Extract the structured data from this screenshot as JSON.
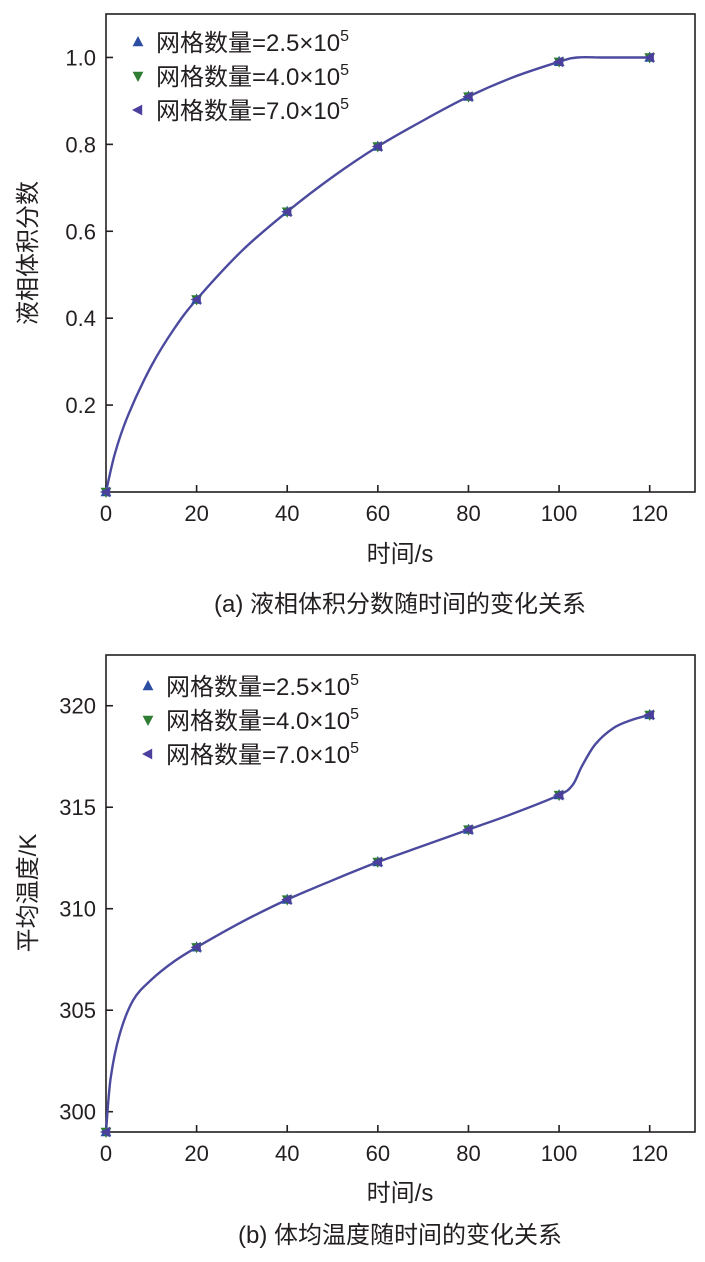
{
  "colors": {
    "series_2_5": "#2b4ea2",
    "series_4_0": "#2e7d32",
    "series_7_0": "#4b3f9e",
    "curve": "#4b4a9e",
    "axis": "#231f20"
  },
  "chart_data": [
    {
      "type": "line",
      "caption": "(a) 液相体积分数随时间的变化关系",
      "xlabel": "时间/s",
      "ylabel": "液相体积分数",
      "xlim": [
        0,
        130
      ],
      "ylim": [
        0,
        1.1
      ],
      "xticks": [
        "0",
        "20",
        "40",
        "60",
        "80",
        "100",
        "120"
      ],
      "yticks": [
        "0.2",
        "0.4",
        "0.6",
        "0.8",
        "1.0"
      ],
      "xtick_values": [
        0,
        20,
        40,
        60,
        80,
        100,
        120
      ],
      "ytick_values": [
        0.2,
        0.4,
        0.6,
        0.8,
        1.0
      ],
      "grid": false,
      "legend_position": "top-left",
      "legend": [
        {
          "base": "网格数量=2.5×10",
          "exp": "5",
          "marker": "triangle-up",
          "color": "#2b4ea2"
        },
        {
          "base": "网格数量=4.0×10",
          "exp": "5",
          "marker": "triangle-down",
          "color": "#2e7d32"
        },
        {
          "base": "网格数量=7.0×10",
          "exp": "5",
          "marker": "triangle-left",
          "color": "#4b3f9e"
        }
      ],
      "x": [
        0,
        20,
        40,
        60,
        80,
        100,
        120
      ],
      "series": [
        {
          "values": [
            0.0,
            0.443,
            0.645,
            0.795,
            0.91,
            0.99,
            1.0
          ]
        },
        {
          "values": [
            0.0,
            0.443,
            0.645,
            0.795,
            0.91,
            0.99,
            1.0
          ]
        },
        {
          "values": [
            0.0,
            0.443,
            0.645,
            0.795,
            0.91,
            0.99,
            1.0
          ]
        }
      ],
      "curve": {
        "x": [
          0,
          2,
          5,
          10,
          15,
          20,
          30,
          40,
          50,
          60,
          70,
          80,
          90,
          100,
          104,
          110,
          120
        ],
        "y": [
          0.0,
          0.09,
          0.18,
          0.29,
          0.375,
          0.443,
          0.555,
          0.645,
          0.725,
          0.795,
          0.855,
          0.91,
          0.955,
          0.99,
          1.0,
          1.0,
          1.0
        ]
      }
    },
    {
      "type": "line",
      "caption": "(b) 体均温度随时间的变化关系",
      "xlabel": "时间/s",
      "ylabel": "平均温度/K",
      "xlim": [
        0,
        130
      ],
      "ylim": [
        299,
        322.5
      ],
      "xticks": [
        "0",
        "20",
        "40",
        "60",
        "80",
        "100",
        "120"
      ],
      "yticks": [
        "300",
        "305",
        "310",
        "315",
        "320"
      ],
      "xtick_values": [
        0,
        20,
        40,
        60,
        80,
        100,
        120
      ],
      "ytick_values": [
        300,
        305,
        310,
        315,
        320
      ],
      "grid": false,
      "legend_position": "top-left",
      "legend": [
        {
          "base": "网格数量=2.5×10",
          "exp": "5",
          "marker": "triangle-up",
          "color": "#2b4ea2"
        },
        {
          "base": "网格数量=4.0×10",
          "exp": "5",
          "marker": "triangle-down",
          "color": "#2e7d32"
        },
        {
          "base": "网格数量=7.0×10",
          "exp": "5",
          "marker": "triangle-left",
          "color": "#4b3f9e"
        }
      ],
      "x": [
        0,
        20,
        40,
        60,
        80,
        100,
        120
      ],
      "series": [
        {
          "values": [
            299.0,
            308.1,
            310.45,
            312.3,
            313.9,
            315.6,
            319.55
          ]
        },
        {
          "values": [
            299.0,
            308.1,
            310.45,
            312.3,
            313.9,
            315.6,
            319.55
          ]
        },
        {
          "values": [
            299.0,
            308.1,
            310.45,
            312.3,
            313.9,
            315.6,
            319.55
          ]
        }
      ],
      "curve": {
        "x": [
          0,
          1,
          3,
          6,
          10,
          15,
          20,
          30,
          40,
          50,
          60,
          70,
          80,
          90,
          100,
          103,
          105,
          108,
          112,
          116,
          120
        ],
        "y": [
          299.0,
          301.6,
          303.8,
          305.5,
          306.5,
          307.4,
          308.1,
          309.35,
          310.45,
          311.4,
          312.3,
          313.1,
          313.9,
          314.7,
          315.6,
          316.1,
          317.0,
          318.1,
          318.9,
          319.3,
          319.55
        ]
      }
    }
  ]
}
